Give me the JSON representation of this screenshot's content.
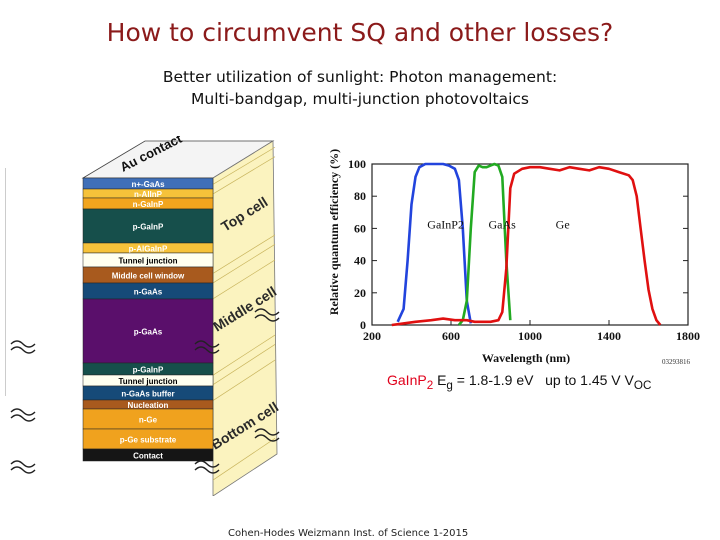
{
  "title": "How to circumvent SQ and other losses?",
  "subtitle_line1": "Better utilization of sunlight: Photon management:",
  "subtitle_line2": "Multi-bandgap, multi-junction photovoltaics",
  "credit": "Cohen-Hodes Weizmann Inst. of Science 1-2015",
  "equation": {
    "material": "GaInP",
    "material_sub": "2",
    "eg_symbol": "E",
    "eg_sub": "g",
    "eg_value": "= 1.8-1.9 eV",
    "voc_text": "up to 1.45 V V",
    "voc_sub": "OC"
  },
  "cell_stack": {
    "top_contact": "Au contact",
    "side_labels": [
      "Top cell",
      "Middle cell",
      "Bottom cell"
    ],
    "layers": [
      {
        "label": "n+-GaAs",
        "color": "#3f6fb8",
        "text": "#ffffff"
      },
      {
        "label": "n-AlInP",
        "color": "#f6c23a",
        "text": "#ffffff"
      },
      {
        "label": "n-GaInP",
        "color": "#f2a51e",
        "text": "#ffffff"
      },
      {
        "label": "p-GaInP",
        "color": "#164f4b",
        "text": "#ffffff"
      },
      {
        "label": "p-AlGaInP",
        "color": "#f6c23a",
        "text": "#ffffff"
      },
      {
        "label": "Tunnel junction",
        "color": "#fffff0",
        "text": "#000000"
      },
      {
        "label": "Middle cell window",
        "color": "#a85a1e",
        "text": "#ffffff"
      },
      {
        "label": "n-GaAs",
        "color": "#164a78",
        "text": "#ffffff"
      },
      {
        "label": "p-GaAs",
        "color": "#5a0f6b",
        "text": "#ffffff"
      },
      {
        "label": "p-GaInP",
        "color": "#164f4b",
        "text": "#ffffff"
      },
      {
        "label": "Tunnel junction",
        "color": "#fffff0",
        "text": "#000000"
      },
      {
        "label": "n-GaAs buffer",
        "color": "#164a78",
        "text": "#ffffff"
      },
      {
        "label": "Nucleation",
        "color": "#a85a1e",
        "text": "#ffffff"
      },
      {
        "label": "n-Ge",
        "color": "#f0a21e",
        "text": "#ffffff"
      },
      {
        "label": "p-Ge substrate",
        "color": "#f0a21e",
        "text": "#ffffff"
      },
      {
        "label": "Contact",
        "color": "#151515",
        "text": "#ffffff"
      }
    ]
  },
  "chart_data": {
    "type": "line",
    "ylabel": "Relative quantum efficiency (%)",
    "xlabel": "Wavelength (nm)",
    "x_ticks": [
      200,
      600,
      1000,
      1400,
      1800
    ],
    "y_ticks": [
      0,
      20,
      40,
      60,
      80,
      100
    ],
    "xlim": [
      200,
      1800
    ],
    "ylim": [
      0,
      100
    ],
    "figure_id": "03293816",
    "series": [
      {
        "name": "GaInP2",
        "color": "#2244dd",
        "x": [
          330,
          360,
          380,
          400,
          420,
          440,
          470,
          500,
          530,
          560,
          590,
          620,
          640,
          660,
          680,
          700
        ],
        "y": [
          2,
          10,
          40,
          75,
          92,
          98,
          100,
          100,
          100,
          100,
          99,
          97,
          90,
          60,
          15,
          1
        ]
      },
      {
        "name": "GaAs",
        "color": "#22aa22",
        "x": [
          640,
          660,
          680,
          700,
          720,
          740,
          760,
          780,
          800,
          820,
          840,
          860,
          880,
          900
        ],
        "y": [
          0,
          3,
          15,
          60,
          95,
          99,
          98,
          98,
          99,
          100,
          99,
          92,
          40,
          3
        ]
      },
      {
        "name": "Ge",
        "color": "#e01010",
        "x": [
          300,
          360,
          420,
          500,
          560,
          620,
          680,
          720,
          760,
          800,
          840,
          860,
          880,
          900,
          920,
          960,
          1000,
          1050,
          1100,
          1150,
          1200,
          1250,
          1300,
          1350,
          1400,
          1450,
          1500,
          1520,
          1540,
          1560,
          1580,
          1600,
          1620,
          1640,
          1660
        ],
        "y": [
          0,
          1,
          2,
          3,
          4,
          3,
          3,
          2,
          2,
          2,
          3,
          8,
          35,
          85,
          94,
          97,
          98,
          98,
          97,
          96,
          98,
          97,
          96,
          98,
          97,
          95,
          93,
          90,
          80,
          60,
          40,
          22,
          10,
          3,
          0
        ]
      }
    ]
  }
}
